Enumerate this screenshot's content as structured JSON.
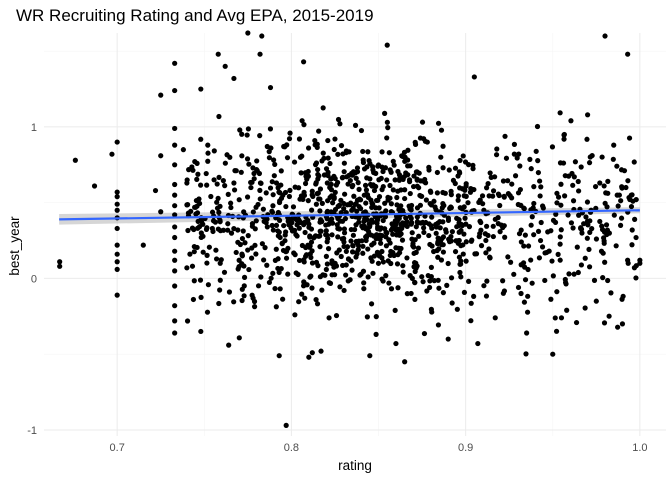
{
  "chart_data": {
    "type": "scatter",
    "title": "WR Recruiting Rating and Avg EPA, 2015-2019",
    "xlabel": "rating",
    "ylabel": "best_year",
    "xlim": [
      0.658,
      1.015
    ],
    "ylim": [
      -1.04,
      1.62
    ],
    "x_ticks": [
      {
        "value": 0.7,
        "label": "0.7"
      },
      {
        "value": 0.8,
        "label": "0.8"
      },
      {
        "value": 0.9,
        "label": "0.9"
      },
      {
        "value": 1.0,
        "label": "1.0"
      }
    ],
    "y_ticks": [
      {
        "value": -1,
        "label": "-1"
      },
      {
        "value": 0,
        "label": "0"
      },
      {
        "value": 1,
        "label": "1"
      }
    ],
    "grid": true,
    "theme": "minimal",
    "point_color": "#000000",
    "smooth_line": {
      "method": "linear",
      "color": "#3366ff",
      "band_color": "#999999",
      "x": [
        0.6667,
        1.0
      ],
      "y": [
        0.39,
        0.45
      ],
      "band_halfwidth": [
        0.035,
        0.02
      ]
    },
    "points": [
      [
        0.667,
        0.11
      ],
      [
        0.667,
        0.08
      ],
      [
        0.676,
        0.78
      ],
      [
        0.687,
        0.61
      ],
      [
        0.697,
        0.82
      ],
      [
        0.7,
        0.9
      ],
      [
        0.7,
        0.57
      ],
      [
        0.7,
        0.54
      ],
      [
        0.7,
        0.49
      ],
      [
        0.7,
        0.45
      ],
      [
        0.7,
        0.4
      ],
      [
        0.7,
        0.33
      ],
      [
        0.7,
        0.22
      ],
      [
        0.7,
        0.16
      ],
      [
        0.7,
        0.11
      ],
      [
        0.7,
        0.06
      ],
      [
        0.7,
        -0.11
      ],
      [
        0.715,
        0.22
      ],
      [
        0.722,
        0.58
      ],
      [
        0.725,
        1.21
      ],
      [
        0.725,
        0.81
      ],
      [
        0.725,
        0.44
      ],
      [
        0.733,
        1.42
      ],
      [
        0.733,
        1.24
      ],
      [
        0.733,
        0.99
      ],
      [
        0.733,
        0.88
      ],
      [
        0.733,
        0.75
      ],
      [
        0.733,
        0.62
      ],
      [
        0.733,
        0.55
      ],
      [
        0.733,
        0.48
      ],
      [
        0.733,
        0.42
      ],
      [
        0.733,
        0.34
      ],
      [
        0.733,
        0.27
      ],
      [
        0.733,
        0.18
      ],
      [
        0.733,
        0.12
      ],
      [
        0.733,
        0.05
      ],
      [
        0.733,
        -0.05
      ],
      [
        0.733,
        -0.18
      ],
      [
        0.733,
        -0.28
      ],
      [
        0.733,
        -0.36
      ],
      [
        0.738,
        0.85
      ],
      [
        0.74,
        0.63
      ],
      [
        0.74,
        0.07
      ],
      [
        0.745,
        0.47
      ],
      [
        0.748,
        1.25
      ],
      [
        0.748,
        -0.35
      ],
      [
        0.752,
        0.88
      ],
      [
        0.755,
        0.31
      ],
      [
        0.758,
        1.48
      ],
      [
        0.762,
        1.4
      ],
      [
        0.764,
        -0.44
      ],
      [
        0.767,
        1.32
      ],
      [
        0.767,
        0.63
      ],
      [
        0.77,
        0.12
      ],
      [
        0.775,
        1.62
      ],
      [
        0.778,
        -0.13
      ],
      [
        0.782,
        1.48
      ],
      [
        0.783,
        1.6
      ],
      [
        0.788,
        1.26
      ],
      [
        0.793,
        -0.51
      ],
      [
        0.797,
        -0.97
      ],
      [
        0.8,
        0.39
      ],
      [
        0.802,
        -0.24
      ],
      [
        0.807,
        1.43
      ],
      [
        0.81,
        -0.52
      ],
      [
        0.812,
        -0.49
      ],
      [
        0.817,
        -0.48
      ],
      [
        0.825,
        0.92
      ],
      [
        0.833,
        0.68
      ],
      [
        0.845,
        -0.51
      ],
      [
        0.855,
        1.54
      ],
      [
        0.86,
        -0.43
      ],
      [
        0.865,
        -0.55
      ],
      [
        0.878,
        0.9
      ],
      [
        0.89,
        -0.4
      ],
      [
        0.905,
        1.33
      ],
      [
        0.907,
        -0.43
      ],
      [
        0.917,
        -0.26
      ],
      [
        0.935,
        -0.36
      ],
      [
        0.943,
        0.25
      ],
      [
        0.95,
        -0.5
      ],
      [
        0.955,
        -0.26
      ],
      [
        0.958,
        -0.21
      ],
      [
        0.963,
        0.77
      ],
      [
        0.97,
        1.08
      ],
      [
        0.975,
        -0.15
      ],
      [
        0.98,
        1.6
      ],
      [
        0.985,
        0.88
      ],
      [
        0.99,
        -0.3
      ],
      [
        0.993,
        1.48
      ],
      [
        0.997,
        0.39
      ],
      [
        1.0,
        0.12
      ],
      [
        1.0,
        0.1
      ],
      [
        0.992,
        0.6
      ],
      [
        0.996,
        0.51
      ],
      [
        0.987,
        0.55
      ],
      [
        0.981,
        0.29
      ],
      [
        0.977,
        0.63
      ],
      [
        0.972,
        0.45
      ],
      [
        0.966,
        0.33
      ]
    ]
  }
}
